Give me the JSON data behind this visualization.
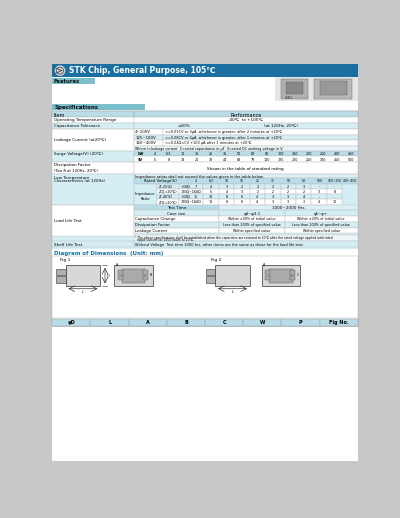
{
  "title": "STK Chip, General Purpose, 105℃",
  "features_label": "Features",
  "specifications_label": "Specifications",
  "header_bg": "#1a6fa0",
  "features_bg": "#7bbfcc",
  "spec_bg": "#7bbfcc",
  "table_light": "#d4eef4",
  "table_header": "#b8dde8",
  "white_bg": "#ffffff",
  "title_color": "#ffffff",
  "text_color": "#000000",
  "body_bg": "#f0f0f0",
  "diagram_title_color": "#1a6fa0",
  "page_bg": "#c8c8c8"
}
